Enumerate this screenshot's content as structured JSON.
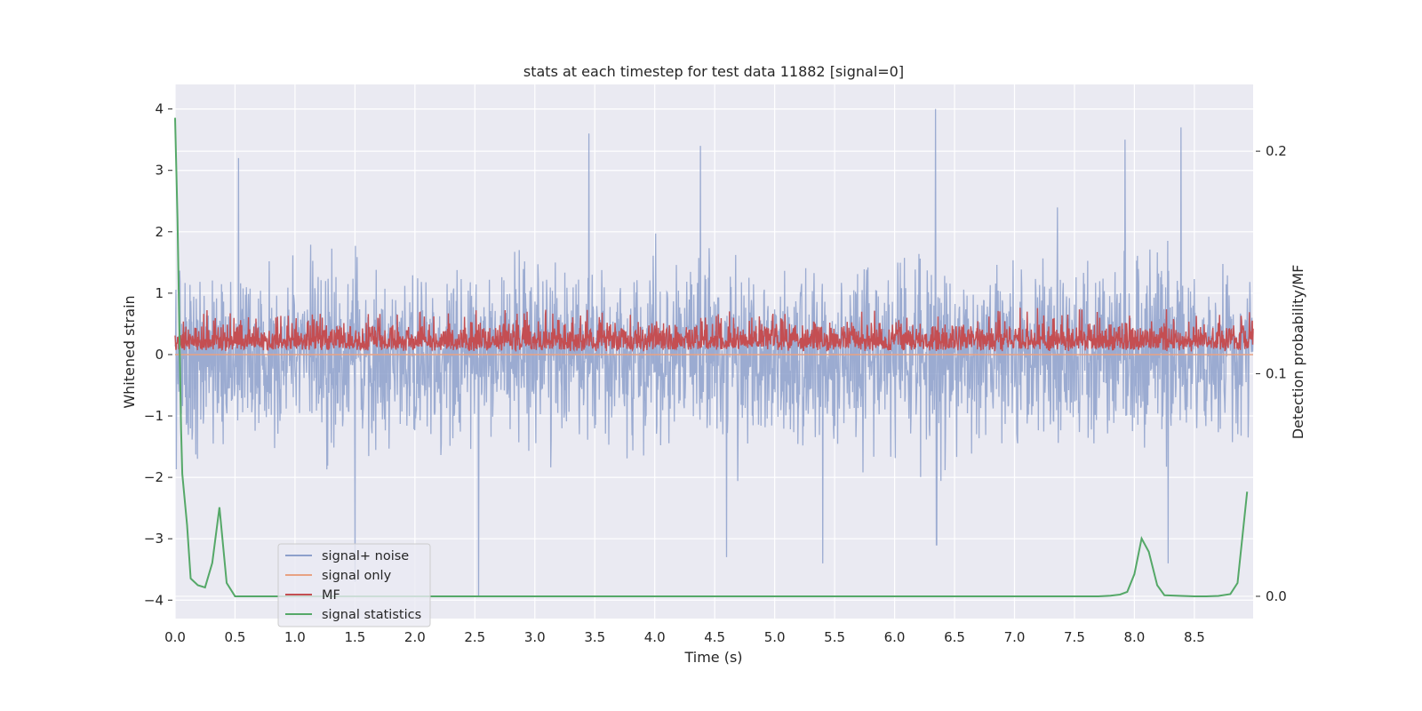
{
  "chart_data": {
    "type": "line",
    "title": "stats at each timestep for test data 11882 [signal=0]",
    "xlabel": "Time (s)",
    "ylabel": "Whitened strain",
    "ylabel_right": "Detection probability/MF",
    "xlim": [
      0.0,
      8.99
    ],
    "ylim": [
      -4.3,
      4.4
    ],
    "ylim_right": [
      -0.01,
      0.23
    ],
    "x_ticks": [
      "0.0",
      "0.5",
      "1.0",
      "1.5",
      "2.0",
      "2.5",
      "3.0",
      "3.5",
      "4.0",
      "4.5",
      "5.0",
      "5.5",
      "6.0",
      "6.5",
      "7.0",
      "7.5",
      "8.0",
      "8.5"
    ],
    "y_ticks_left": [
      "4",
      "3",
      "2",
      "1",
      "0",
      "−1",
      "−2",
      "−3",
      "−4"
    ],
    "y_ticks_right": [
      "0.2",
      "0.1",
      "0.0"
    ],
    "grid": true,
    "legend_position": "lower-left",
    "legend": [
      {
        "label": "signal+ noise",
        "color": "#8da0cb"
      },
      {
        "label": "signal only",
        "color": "#e8a283"
      },
      {
        "label": "MF",
        "color": "#c44e52"
      },
      {
        "label": "signal statistics",
        "color": "#55a868"
      }
    ],
    "series": [
      {
        "name": "signal+ noise",
        "axis": "left",
        "color": "#8da0cb",
        "sample_rate_hz": 2048,
        "envelope_typical": [
          -1.5,
          1.5
        ],
        "extremes": [
          {
            "x": 0.53,
            "y": 3.2
          },
          {
            "x": 1.5,
            "y": -3.7
          },
          {
            "x": 2.53,
            "y": -3.95
          },
          {
            "x": 3.45,
            "y": 3.6
          },
          {
            "x": 4.38,
            "y": 3.4
          },
          {
            "x": 4.6,
            "y": -3.3
          },
          {
            "x": 5.4,
            "y": -3.4
          },
          {
            "x": 6.34,
            "y": 4.0
          },
          {
            "x": 6.35,
            "y": -3.1
          },
          {
            "x": 7.92,
            "y": 3.5
          },
          {
            "x": 8.28,
            "y": -3.4
          },
          {
            "x": 8.39,
            "y": 3.7
          }
        ]
      },
      {
        "name": "signal only",
        "axis": "left",
        "color": "#e8a283",
        "x": [
          0.0,
          8.99
        ],
        "y": [
          0.0,
          0.0
        ]
      },
      {
        "name": "MF",
        "axis": "right",
        "color": "#c44e52",
        "range_typical": [
          0.11,
          0.125
        ]
      },
      {
        "name": "signal statistics",
        "axis": "right",
        "color": "#55a868",
        "x": [
          0.0,
          0.02,
          0.05,
          0.06,
          0.1,
          0.13,
          0.19,
          0.25,
          0.31,
          0.37,
          0.43,
          0.5,
          1.0,
          2.0,
          3.0,
          4.0,
          5.0,
          6.0,
          7.0,
          7.5,
          7.7,
          7.8,
          7.88,
          7.94,
          8.0,
          8.06,
          8.12,
          8.19,
          8.25,
          8.5,
          8.6,
          8.7,
          8.8,
          8.86,
          8.94
        ],
        "y": [
          0.215,
          0.17,
          0.075,
          0.055,
          0.032,
          0.008,
          0.005,
          0.004,
          0.015,
          0.04,
          0.006,
          0.0,
          0.0,
          0.0,
          0.0,
          0.0,
          0.0,
          0.0,
          0.0,
          0.0,
          0.0,
          0.0003,
          0.0008,
          0.002,
          0.01,
          0.026,
          0.02,
          0.005,
          0.0005,
          0.0,
          0.0,
          0.0002,
          0.001,
          0.006,
          0.047
        ]
      }
    ]
  }
}
